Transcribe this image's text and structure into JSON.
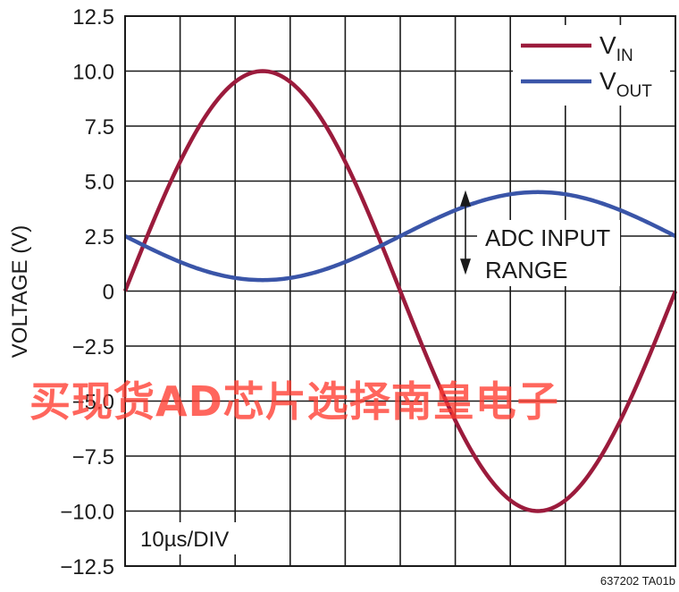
{
  "chart_data": {
    "type": "line",
    "ylabel": "VOLTAGE (V)",
    "ylim": [
      -12.5,
      12.5
    ],
    "yticks": [
      12.5,
      10.0,
      7.5,
      5.0,
      2.5,
      0,
      -2.5,
      -5.0,
      -7.5,
      -10.0,
      -12.5
    ],
    "ytick_labels": [
      "12.5",
      "10.0",
      "7.5",
      "5.0",
      "2.5",
      "0",
      "−2.5",
      "−5.0",
      "−7.5",
      "−10.0",
      "−12.5"
    ],
    "x_divisions": 10,
    "x_unit_us_per_div": 10,
    "xlim_us": [
      0,
      100
    ],
    "grid": true,
    "legend_position": "top-right",
    "series": [
      {
        "name": "V_IN",
        "name_main": "V",
        "name_sub": "IN",
        "color": "#9b1b3c",
        "waveform": "sine",
        "offset_v": 0,
        "amplitude_v": 10,
        "period_us": 100,
        "phase_deg": 0
      },
      {
        "name": "V_OUT",
        "name_main": "V",
        "name_sub": "OUT",
        "color": "#3a55a8",
        "waveform": "sine",
        "offset_v": 2.5,
        "amplitude_v": -2,
        "period_us": 100,
        "phase_deg": 0
      }
    ],
    "annotations": [
      {
        "text_line1": "ADC INPUT",
        "text_line2": "RANGE",
        "range_v": [
          0.5,
          4.5
        ]
      }
    ],
    "timebase_label": "10µs/DIV",
    "figure_id": "637202 TA01b"
  },
  "watermark": "买现货AD芯片选择南皇电子"
}
